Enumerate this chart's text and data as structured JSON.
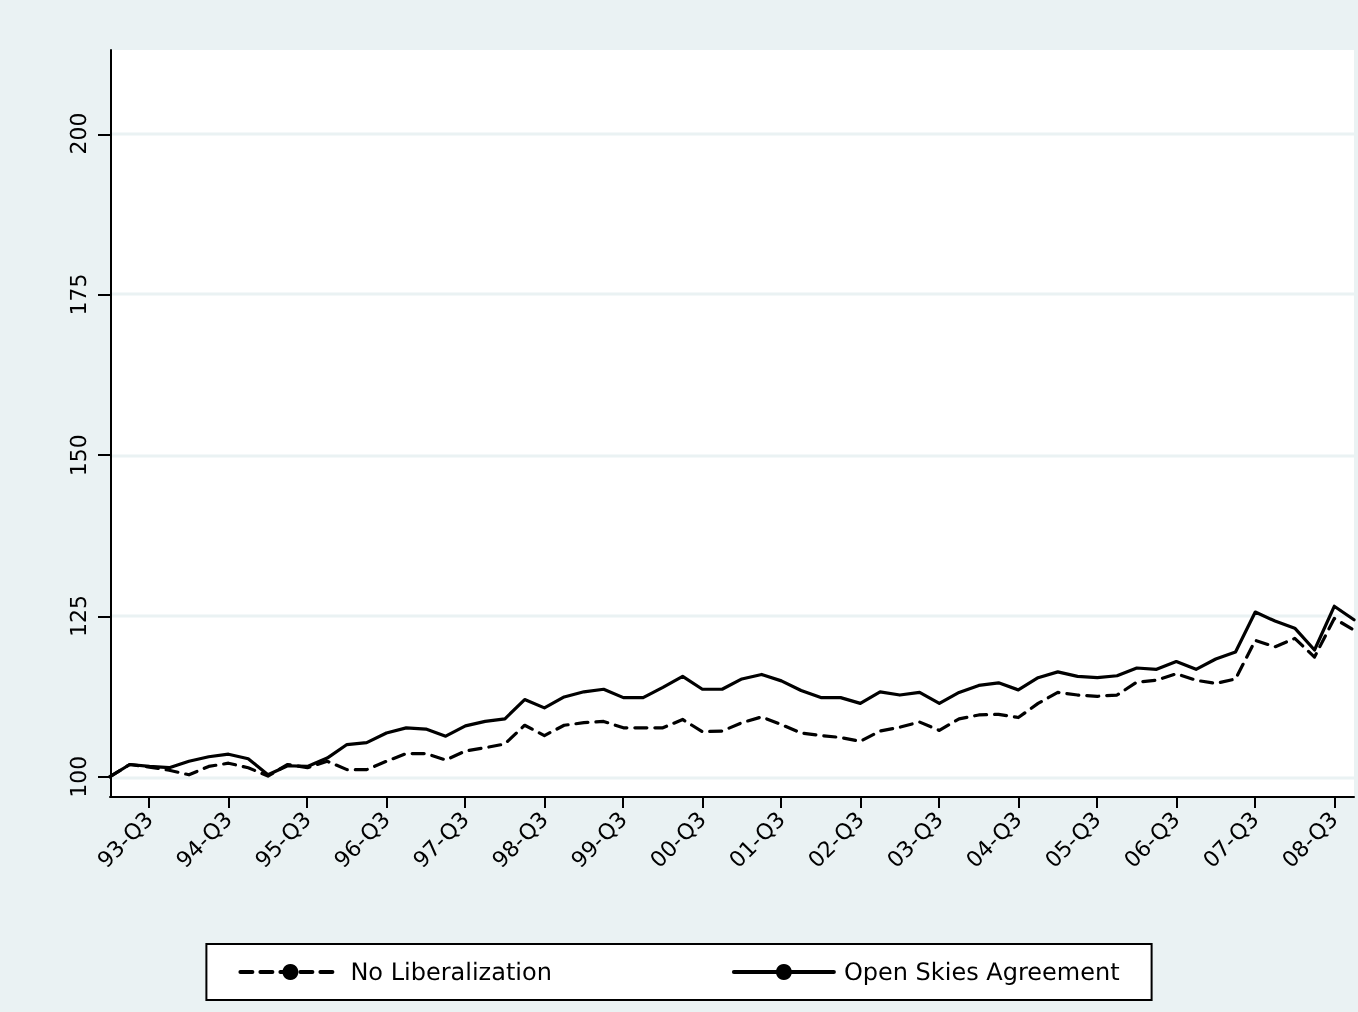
{
  "chart_data": {
    "type": "line",
    "categories": [
      null,
      null,
      "93-Q3",
      null,
      null,
      null,
      "94-Q3",
      null,
      null,
      null,
      "95-Q3",
      null,
      null,
      null,
      "96-Q3",
      null,
      null,
      null,
      "97-Q3",
      null,
      null,
      null,
      "98-Q3",
      null,
      null,
      null,
      "99-Q3",
      null,
      null,
      null,
      "00-Q3",
      null,
      null,
      null,
      "01-Q3",
      null,
      null,
      null,
      "02-Q3",
      null,
      null,
      null,
      "03-Q3",
      null,
      null,
      null,
      "04-Q3",
      null,
      null,
      null,
      "05-Q3",
      null,
      null,
      null,
      "06-Q3",
      null,
      null,
      null,
      "07-Q3",
      null,
      null,
      null,
      "08-Q3",
      null
    ],
    "series": [
      {
        "name": "No Liberalization",
        "color": "#000000",
        "line_style": "dashed",
        "values": [
          100,
          101.9,
          101.5,
          101,
          100.3,
          101.6,
          102.1,
          101.4,
          100.1,
          101.9,
          101.4,
          102.4,
          101.1,
          101.1,
          102.4,
          103.6,
          103.6,
          102.6,
          104,
          104.5,
          105.1,
          108,
          106.4,
          108,
          108.4,
          108.6,
          107.6,
          107.6,
          107.6,
          108.9,
          107,
          107.1,
          108.4,
          109.3,
          108.1,
          106.8,
          106.4,
          106.1,
          105.5,
          107.1,
          107.7,
          108.5,
          107.2,
          109,
          109.6,
          109.7,
          109.2,
          111.4,
          113.1,
          112.7,
          112.5,
          112.7,
          114.7,
          115,
          116,
          115,
          114.5,
          115.2,
          121.2,
          120.2,
          121.5,
          118.6,
          124.6,
          122.8
        ]
      },
      {
        "name": "Open Skies Agreement",
        "color": "#000000",
        "line_style": "solid",
        "values": [
          100,
          101.9,
          101.6,
          101.4,
          102.4,
          103.1,
          103.5,
          102.8,
          100.3,
          101.7,
          101.6,
          102.9,
          105,
          105.3,
          106.8,
          107.6,
          107.4,
          106.3,
          107.9,
          108.6,
          109,
          112,
          110.7,
          112.4,
          113.2,
          113.6,
          112.3,
          112.3,
          113.9,
          115.6,
          113.6,
          113.6,
          115.2,
          115.9,
          114.9,
          113.4,
          112.3,
          112.3,
          111.4,
          113.2,
          112.7,
          113.1,
          111.4,
          113.1,
          114.2,
          114.6,
          113.5,
          115.4,
          116.3,
          115.6,
          115.4,
          115.7,
          116.9,
          116.7,
          117.9,
          116.7,
          118.3,
          119.4,
          125.6,
          124.2,
          123.1,
          119.7,
          126.5,
          124.4
        ]
      }
    ],
    "ylim": [
      97,
      213
    ],
    "yticks": [
      100,
      125,
      150,
      175,
      200
    ],
    "grid": "y",
    "legend": "bottom",
    "marker": "none"
  }
}
